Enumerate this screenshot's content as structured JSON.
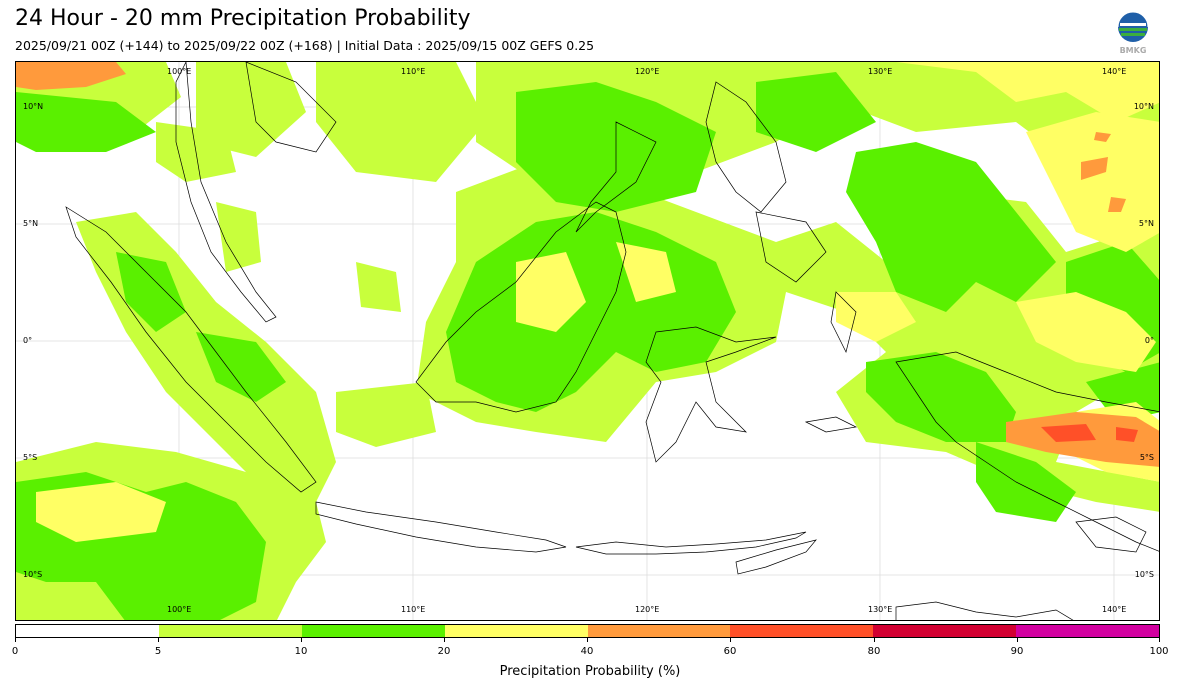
{
  "title": "24 Hour - 20 mm Precipitation Probability",
  "subtitle": "2025/09/21 00Z (+144) to 2025/09/22 00Z (+168) | Initial Data : 2025/09/15 00Z GEFS 0.25",
  "logo": {
    "icon": "bmkg-logo",
    "text": "BMKG"
  },
  "map": {
    "lon_labels": [
      "100°E",
      "110°E",
      "120°E",
      "130°E",
      "140°E"
    ],
    "lat_labels": [
      "10°N",
      "5°N",
      "0°",
      "5°S",
      "10°S"
    ]
  },
  "colorbar": {
    "label": "Precipitation Probability (%)",
    "ticks": [
      "0",
      "5",
      "10",
      "20",
      "40",
      "60",
      "80",
      "90",
      "100"
    ],
    "colors": [
      "#ffffff",
      "#c8ff3c",
      "#5af000",
      "#ffff64",
      "#ff9a3c",
      "#ff5028",
      "#d20032",
      "#d200a0"
    ]
  }
}
